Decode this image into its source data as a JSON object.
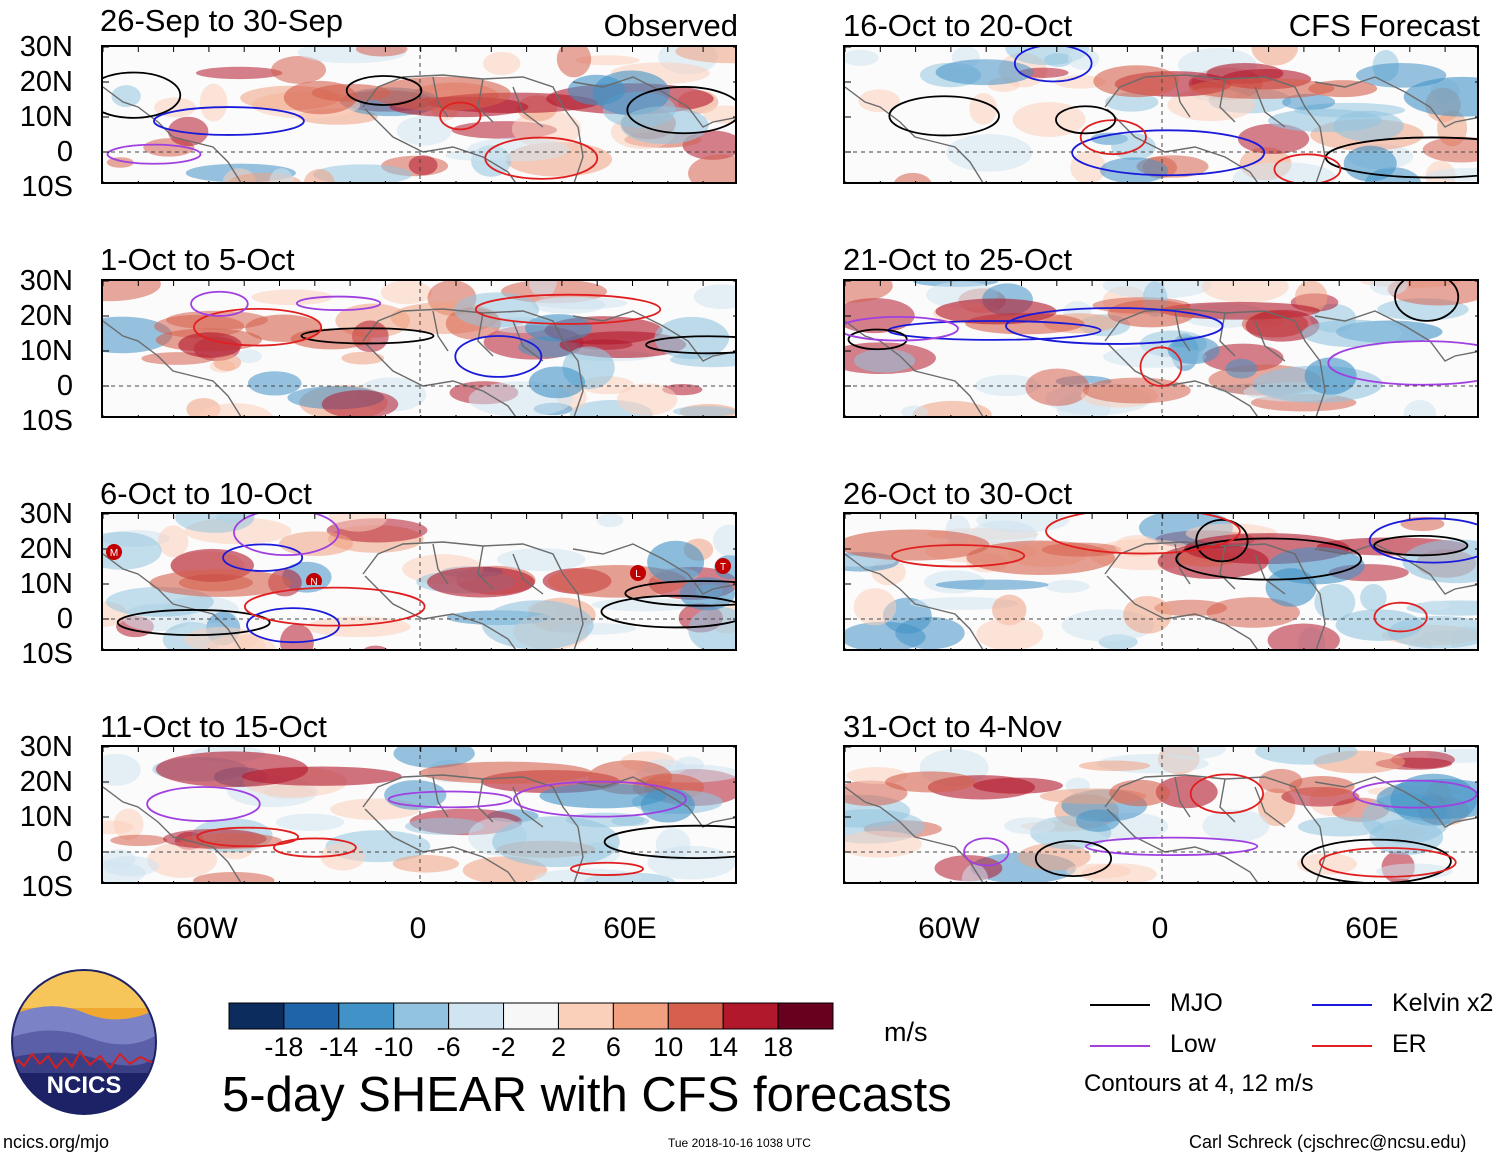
{
  "figure": {
    "title": "5-day SHEAR with CFS forecasts",
    "site": "ncics.org/mjo",
    "timestamp": "Tue 2018-10-16 1038 UTC",
    "author": "Carl Schreck (cjschrec@ncsu.edu)",
    "logo_text": "NCICS",
    "observed_label": "Observed",
    "forecast_label": "CFS Forecast"
  },
  "panels": [
    {
      "title": "26-Sep to 30-Sep",
      "column": "observed"
    },
    {
      "title": "1-Oct to 5-Oct",
      "column": "observed"
    },
    {
      "title": "6-Oct to 10-Oct",
      "column": "observed"
    },
    {
      "title": "11-Oct to 15-Oct",
      "column": "observed"
    },
    {
      "title": "16-Oct to 20-Oct",
      "column": "forecast"
    },
    {
      "title": "21-Oct to 25-Oct",
      "column": "forecast"
    },
    {
      "title": "26-Oct to 30-Oct",
      "column": "forecast"
    },
    {
      "title": "31-Oct to 4-Nov",
      "column": "forecast"
    }
  ],
  "axes": {
    "lat_ticks": [
      "30N",
      "20N",
      "10N",
      "0",
      "10S"
    ],
    "lon_ticks": [
      "60W",
      "0",
      "60E"
    ]
  },
  "colorbar": {
    "unit": "m/s",
    "tick_labels": [
      "-18",
      "-14",
      "-10",
      "-6",
      "-2",
      "2",
      "6",
      "10",
      "14",
      "18"
    ],
    "colors": [
      "#0d2c5e",
      "#1f63a8",
      "#4192c7",
      "#93c4df",
      "#d0e4f1",
      "#f7f7f7",
      "#fbd0bb",
      "#f0a07f",
      "#d6604d",
      "#b2182b",
      "#67001f"
    ]
  },
  "legend": {
    "items": [
      {
        "label": "MJO",
        "color": "#000000"
      },
      {
        "label": "Kelvin x2",
        "color": "#1a1adb"
      },
      {
        "label": "Low",
        "color": "#a040e0"
      },
      {
        "label": "ER",
        "color": "#e02020"
      }
    ],
    "note": "Contours at 4, 12 m/s"
  },
  "storm_markers": [
    "M",
    "N",
    "L",
    "T"
  ]
}
